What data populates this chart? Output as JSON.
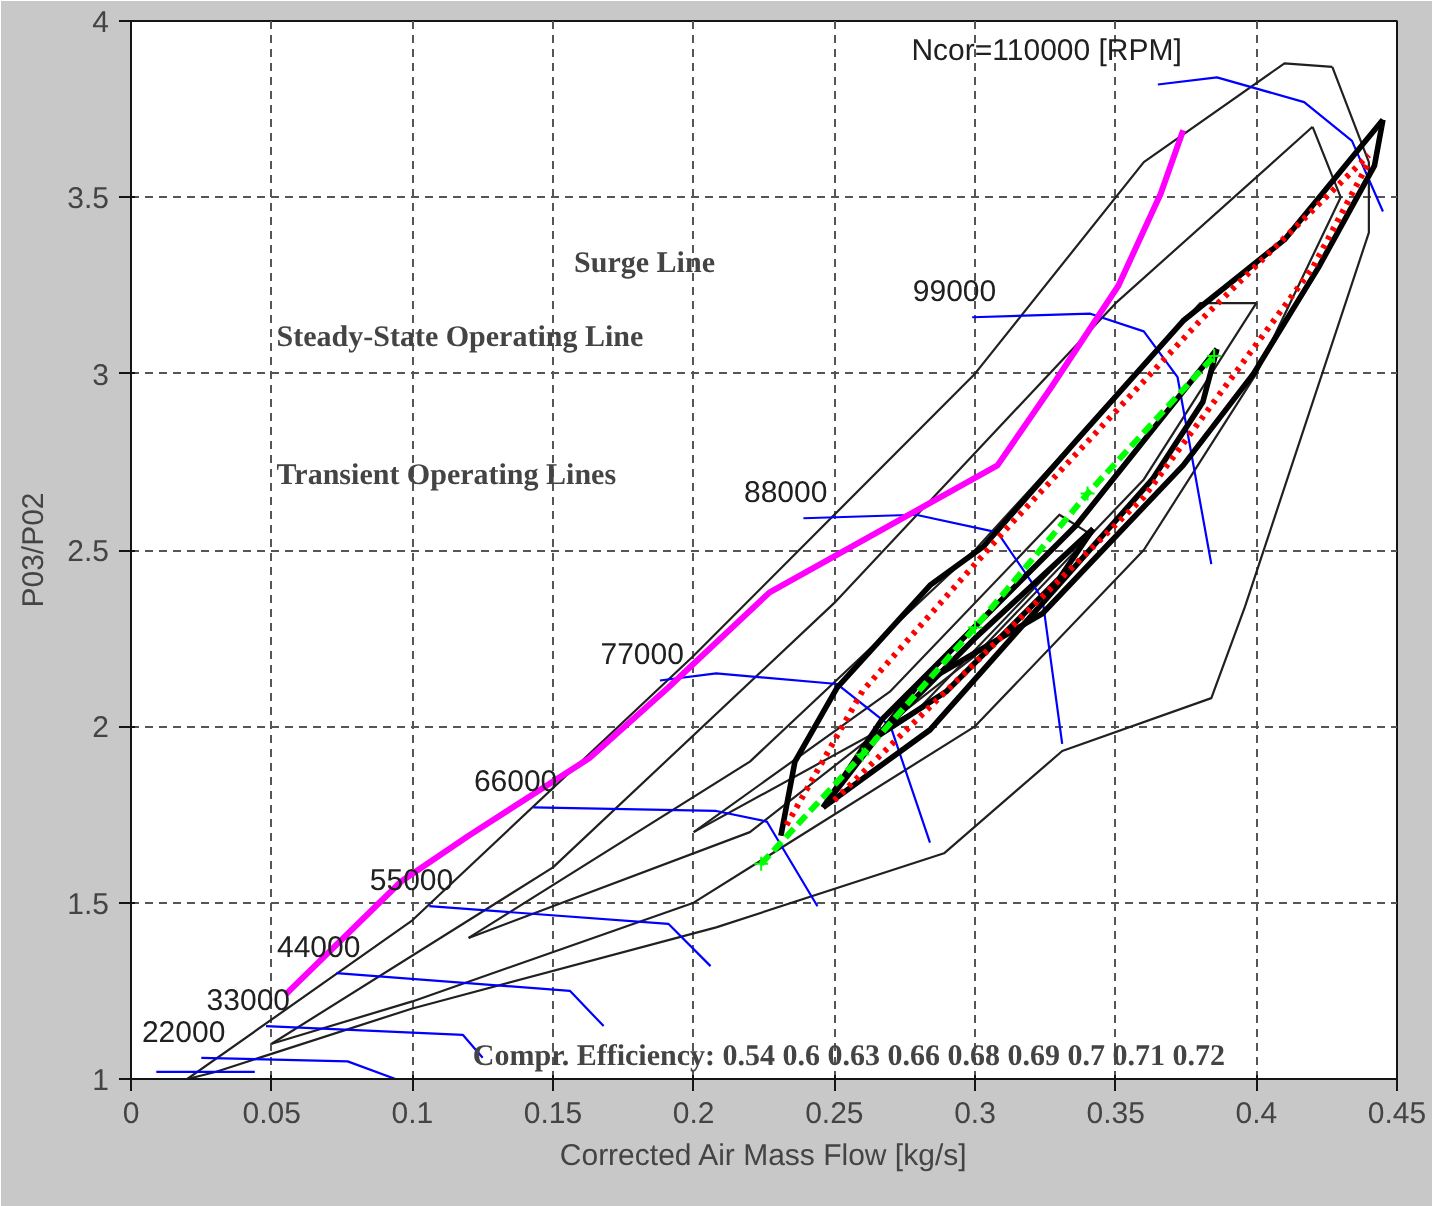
{
  "chart_data": {
    "type": "line",
    "xlabel": "Corrected Air Mass Flow [kg/s]",
    "ylabel": "P03/P02",
    "xlim": [
      0,
      0.45
    ],
    "ylim": [
      1,
      4
    ],
    "xticks": [
      0,
      0.05,
      0.1,
      0.15,
      0.2,
      0.25,
      0.3,
      0.35,
      0.4,
      0.45
    ],
    "yticks": [
      1,
      1.5,
      2,
      2.5,
      3,
      3.5,
      4
    ],
    "grid": true,
    "series": [
      {
        "color": "#202020",
        "x": [
          0.02,
          0.1,
          0.2,
          0.3,
          0.36,
          0.41,
          0.427
        ],
        "values": [
          1.0,
          1.45,
          2.2,
          3.0,
          3.6,
          3.88,
          3.87
        ]
      },
      {
        "color": "#202020",
        "x": [
          0.427,
          0.44,
          0.44,
          0.396,
          0.384,
          0.331,
          0.289,
          0.208,
          0.1,
          0.03,
          0.02
        ],
        "values": [
          3.87,
          3.6,
          3.4,
          2.34,
          2.08,
          1.93,
          1.64,
          1.43,
          1.2,
          1.02,
          1.0
        ]
      },
      {
        "color": "#202020",
        "x": [
          0.05,
          0.15,
          0.25,
          0.35,
          0.42
        ],
        "values": [
          1.1,
          1.6,
          2.35,
          3.2,
          3.7
        ]
      },
      {
        "color": "#202020",
        "x": [
          0.42,
          0.43,
          0.4,
          0.36,
          0.3,
          0.2,
          0.1,
          0.05
        ],
        "values": [
          3.7,
          3.5,
          3.0,
          2.5,
          2.0,
          1.5,
          1.22,
          1.1
        ]
      },
      {
        "color": "#202020",
        "x": [
          0.12,
          0.22,
          0.3,
          0.38,
          0.4
        ],
        "values": [
          1.4,
          1.9,
          2.5,
          3.2,
          3.2
        ]
      },
      {
        "color": "#202020",
        "x": [
          0.4,
          0.36,
          0.3,
          0.22,
          0.12
        ],
        "values": [
          3.2,
          2.7,
          2.2,
          1.7,
          1.4
        ]
      },
      {
        "color": "#202020",
        "x": [
          0.2,
          0.27,
          0.33,
          0.34
        ],
        "values": [
          1.7,
          2.1,
          2.6,
          2.55
        ]
      },
      {
        "color": "#202020",
        "x": [
          0.34,
          0.28,
          0.2
        ],
        "values": [
          2.55,
          2.05,
          1.7
        ]
      },
      {
        "color": "#0000ff",
        "x": [
          0.009,
          0.044
        ],
        "values": [
          1.02,
          1.02
        ]
      },
      {
        "name": "22000",
        "color": "#0000ff",
        "x": [
          0.025,
          0.077,
          0.094
        ],
        "values": [
          1.06,
          1.05,
          1.0
        ]
      },
      {
        "name": "33000",
        "color": "#0000ff",
        "x": [
          0.048,
          0.118,
          0.125
        ],
        "values": [
          1.15,
          1.125,
          1.06
        ]
      },
      {
        "name": "44000",
        "color": "#0000ff",
        "x": [
          0.073,
          0.156,
          0.168
        ],
        "values": [
          1.3,
          1.25,
          1.15
        ]
      },
      {
        "name": "55000",
        "color": "#0000ff",
        "x": [
          0.106,
          0.191,
          0.206
        ],
        "values": [
          1.49,
          1.44,
          1.32
        ]
      },
      {
        "name": "66000",
        "color": "#0000ff",
        "x": [
          0.143,
          0.208,
          0.226,
          0.244
        ],
        "values": [
          1.77,
          1.76,
          1.73,
          1.49
        ]
      },
      {
        "name": "77000",
        "color": "#0000ff",
        "x": [
          0.188,
          0.208,
          0.251,
          0.27,
          0.284
        ],
        "values": [
          2.13,
          2.15,
          2.12,
          2.0,
          1.67
        ]
      },
      {
        "name": "88000",
        "color": "#0000ff",
        "x": [
          0.239,
          0.279,
          0.308,
          0.32,
          0.324,
          0.331
        ],
        "values": [
          2.59,
          2.6,
          2.55,
          2.41,
          2.36,
          1.95
        ]
      },
      {
        "name": "99000",
        "color": "#0000ff",
        "x": [
          0.299,
          0.341,
          0.36,
          0.372,
          0.384
        ],
        "values": [
          3.16,
          3.17,
          3.12,
          2.99,
          2.46
        ]
      },
      {
        "name": "Ncor=110000 [RPM]",
        "color": "#0000ff",
        "x": [
          0.365,
          0.386,
          0.417,
          0.434,
          0.445
        ],
        "values": [
          3.82,
          3.84,
          3.77,
          3.66,
          3.46
        ]
      },
      {
        "color": "#ff00ff",
        "x": [
          0.055,
          0.096,
          0.12,
          0.163,
          0.191,
          0.227,
          0.308,
          0.327,
          0.351,
          0.366,
          0.374
        ],
        "values": [
          1.24,
          1.56,
          1.69,
          1.91,
          2.11,
          2.38,
          2.74,
          2.96,
          3.25,
          3.51,
          3.69
        ]
      },
      {
        "color": "#000000",
        "x": [
          0.231,
          0.236,
          0.251,
          0.284,
          0.303,
          0.336,
          0.374,
          0.41,
          0.445
        ],
        "values": [
          1.69,
          1.9,
          2.11,
          2.4,
          2.51,
          2.81,
          3.15,
          3.38,
          3.72
        ]
      },
      {
        "color": "#000000",
        "x": [
          0.445,
          0.442,
          0.422,
          0.399,
          0.374,
          0.324,
          0.279,
          0.246
        ],
        "values": [
          3.72,
          3.59,
          3.3,
          3.0,
          2.74,
          2.32,
          2.11,
          1.77
        ]
      },
      {
        "color": "#000000",
        "x": [
          0.246,
          0.267,
          0.336,
          0.386
        ],
        "values": [
          1.77,
          2.02,
          2.57,
          3.07
        ]
      },
      {
        "color": "#000000",
        "x": [
          0.386,
          0.381,
          0.363,
          0.284,
          0.246
        ],
        "values": [
          3.07,
          2.92,
          2.7,
          1.99,
          1.77
        ]
      },
      {
        "color": "#000000",
        "x": [
          0.265,
          0.3,
          0.342
        ],
        "values": [
          1.97,
          2.25,
          2.56
        ]
      },
      {
        "color": "#000000",
        "x": [
          0.342,
          0.33,
          0.29,
          0.265
        ],
        "values": [
          2.56,
          2.42,
          2.1,
          1.97
        ]
      },
      {
        "color": "#ff0000",
        "line_style": "dotted",
        "x": [
          0.233,
          0.26,
          0.31,
          0.38,
          0.44
        ],
        "values": [
          1.72,
          2.1,
          2.55,
          3.15,
          3.62
        ]
      },
      {
        "color": "#ff0000",
        "line_style": "dotted",
        "x": [
          0.25,
          0.3,
          0.36,
          0.42,
          0.44
        ],
        "values": [
          1.79,
          2.18,
          2.65,
          3.3,
          3.6
        ]
      },
      {
        "color": "#00ff00",
        "line_style": "dashed",
        "marker": "cross",
        "x": [
          0.224,
          0.26,
          0.3,
          0.34,
          0.385
        ],
        "values": [
          1.61,
          1.92,
          2.28,
          2.66,
          3.05
        ]
      }
    ],
    "annotations": [
      "Surge Line",
      "Steady-State Operating Line",
      "Transient Operating Lines",
      "Compr. Efficiency: 0.54 0.6 0.63 0.66 0.68 0.69 0.7 0.71 0.72"
    ]
  }
}
